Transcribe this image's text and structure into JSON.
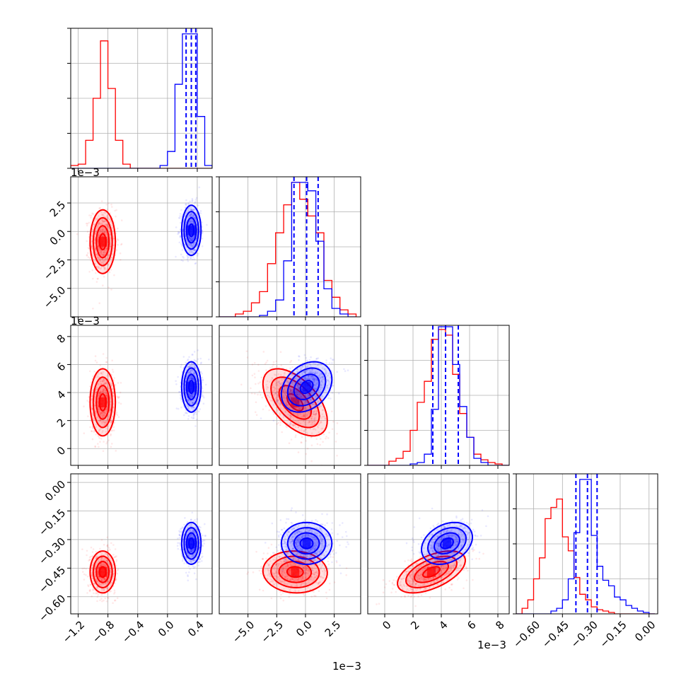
{
  "chart_data": {
    "type": "corner",
    "n_parameters": 4,
    "grid": true,
    "legend": "none",
    "colors": {
      "series_a": "#ff0000",
      "series_b": "#0000ff",
      "grid": "#b0b0b0"
    },
    "series": [
      {
        "color": "#ff0000",
        "mean": [
          -0.87,
          -0.0009,
          0.0033,
          -0.47
        ],
        "std": [
          0.085,
          0.0014,
          0.0012,
          0.055
        ],
        "corr": {
          "1-2": -0.55,
          "1-3": -0.05,
          "2-3": 0.55
        }
      },
      {
        "color": "#0000ff",
        "mean": [
          0.32,
          0.0001,
          0.0044,
          -0.32
        ],
        "std": [
          0.065,
          0.0011,
          0.0009,
          0.055
        ],
        "corr": {
          "1-2": 0.3,
          "1-3": 0.0,
          "2-3": 0.3
        }
      }
    ],
    "quantile_lines": {
      "color": "#0000ff",
      "style": "dashed",
      "values": [
        [
          0.25,
          0.32,
          0.38
        ],
        [
          -0.001,
          0.0001,
          0.0011
        ],
        [
          0.0034,
          0.0043,
          0.0052
        ],
        [
          -0.38,
          -0.32,
          -0.27
        ]
      ]
    },
    "histograms": [
      {
        "diag": 0,
        "edges": [
          -1.3,
          -1.2,
          -1.1,
          -1.0,
          -0.9,
          -0.8,
          -0.7,
          -0.6,
          -0.5,
          -0.4,
          -0.3,
          -0.2,
          -0.1,
          0.0,
          0.1,
          0.2,
          0.3,
          0.4,
          0.5,
          0.6
        ],
        "red": [
          0.02,
          0.03,
          0.2,
          0.5,
          0.91,
          0.57,
          0.2,
          0.03,
          0.0,
          0.0,
          0.0,
          0.0,
          0.0,
          0.0,
          0.0,
          0.0,
          0.0,
          0.0,
          0.0
        ],
        "blue": [
          0,
          0,
          0,
          0,
          0,
          0,
          0,
          0,
          0,
          0,
          0,
          0,
          0.02,
          0.12,
          0.6,
          0.96,
          0.96,
          0.37,
          0.02
        ]
      },
      {
        "diag": 1,
        "edges": [
          -0.0075,
          -0.0068,
          -0.0061,
          -0.0054,
          -0.0047,
          -0.004,
          -0.0033,
          -0.0026,
          -0.0019,
          -0.0012,
          -0.0005,
          0.0002,
          0.0009,
          0.0016,
          0.0023,
          0.003,
          0.0037,
          0.0044
        ],
        "red": [
          0.0,
          0.0,
          0.02,
          0.04,
          0.1,
          0.18,
          0.38,
          0.6,
          0.8,
          0.96,
          0.84,
          0.72,
          0.6,
          0.26,
          0.14,
          0.05,
          0.02
        ],
        "blue": [
          0.0,
          0.0,
          0.0,
          0.0,
          0.0,
          0.01,
          0.04,
          0.12,
          0.4,
          0.96,
          0.96,
          0.9,
          0.54,
          0.2,
          0.06,
          0.02,
          0.0
        ]
      },
      {
        "diag": 2,
        "edges": [
          -0.0012,
          -0.0007,
          -0.0002,
          0.0003,
          0.0008,
          0.0013,
          0.0018,
          0.0023,
          0.0028,
          0.0033,
          0.0038,
          0.0043,
          0.0048,
          0.0053,
          0.0058,
          0.0063,
          0.0068,
          0.0073,
          0.0078,
          0.0083,
          0.0088
        ],
        "red": [
          0.0,
          0.0,
          0.0,
          0.03,
          0.05,
          0.1,
          0.25,
          0.45,
          0.6,
          0.9,
          0.97,
          0.93,
          0.65,
          0.37,
          0.2,
          0.08,
          0.04,
          0.02,
          0.01,
          0.0
        ],
        "blue": [
          0.0,
          0.0,
          0.0,
          0.0,
          0.0,
          0.0,
          0.01,
          0.02,
          0.08,
          0.4,
          0.99,
          0.99,
          0.72,
          0.42,
          0.2,
          0.05,
          0.02,
          0.0,
          0.0,
          0.0
        ]
      },
      {
        "diag": 3,
        "edges": [
          -0.69,
          -0.66,
          -0.63,
          -0.6,
          -0.57,
          -0.54,
          -0.51,
          -0.48,
          -0.45,
          -0.42,
          -0.39,
          -0.36,
          -0.33,
          -0.3,
          -0.27,
          -0.24,
          -0.21,
          -0.18,
          -0.15,
          -0.12,
          -0.09,
          -0.06,
          -0.03,
          0.0,
          0.03
        ],
        "red": [
          0.0,
          0.04,
          0.1,
          0.25,
          0.4,
          0.68,
          0.76,
          0.82,
          0.55,
          0.45,
          0.26,
          0.14,
          0.1,
          0.05,
          0.03,
          0.02,
          0.01,
          0.0,
          0.0,
          0.0,
          0.0,
          0.0,
          0.0,
          0.0
        ],
        "blue": [
          0.0,
          0.0,
          0.0,
          0.0,
          0.0,
          0.0,
          0.02,
          0.04,
          0.1,
          0.25,
          0.58,
          0.96,
          0.96,
          0.56,
          0.34,
          0.24,
          0.2,
          0.12,
          0.1,
          0.06,
          0.04,
          0.02,
          0.01,
          0.0
        ]
      }
    ],
    "axes": [
      {
        "param": 1,
        "range": [
          -1.3,
          0.6
        ],
        "ticks": [
          -1.2,
          -0.8,
          -0.4,
          0.0,
          0.4
        ],
        "tick_labels": [
          "−1.2",
          "−0.8",
          "−0.4",
          "0.0",
          "0.4"
        ],
        "offset_text": ""
      },
      {
        "param": 2,
        "range": [
          -0.0075,
          0.0048
        ],
        "ticks": [
          -0.005,
          -0.0025,
          0.0,
          0.0025
        ],
        "tick_labels": [
          "−5.0",
          "−2.5",
          "0.0",
          "2.5"
        ],
        "offset_text": "1e−3"
      },
      {
        "param": 3,
        "range": [
          -0.0012,
          0.0088
        ],
        "ticks": [
          0.0,
          0.002,
          0.004,
          0.006,
          0.008
        ],
        "tick_labels": [
          "0",
          "2",
          "4",
          "6",
          "8"
        ],
        "offset_text": "1e−3"
      },
      {
        "param": 4,
        "range": [
          -0.69,
          0.045
        ],
        "ticks": [
          -0.6,
          -0.45,
          -0.3,
          -0.15,
          0.0
        ],
        "tick_labels": [
          "−0.60",
          "−0.45",
          "−0.30",
          "−0.15",
          "0.00"
        ],
        "offset_text": ""
      }
    ],
    "diag_top_offset_text": "1e−3",
    "xlabel": "",
    "ylabel": "",
    "title": ""
  }
}
